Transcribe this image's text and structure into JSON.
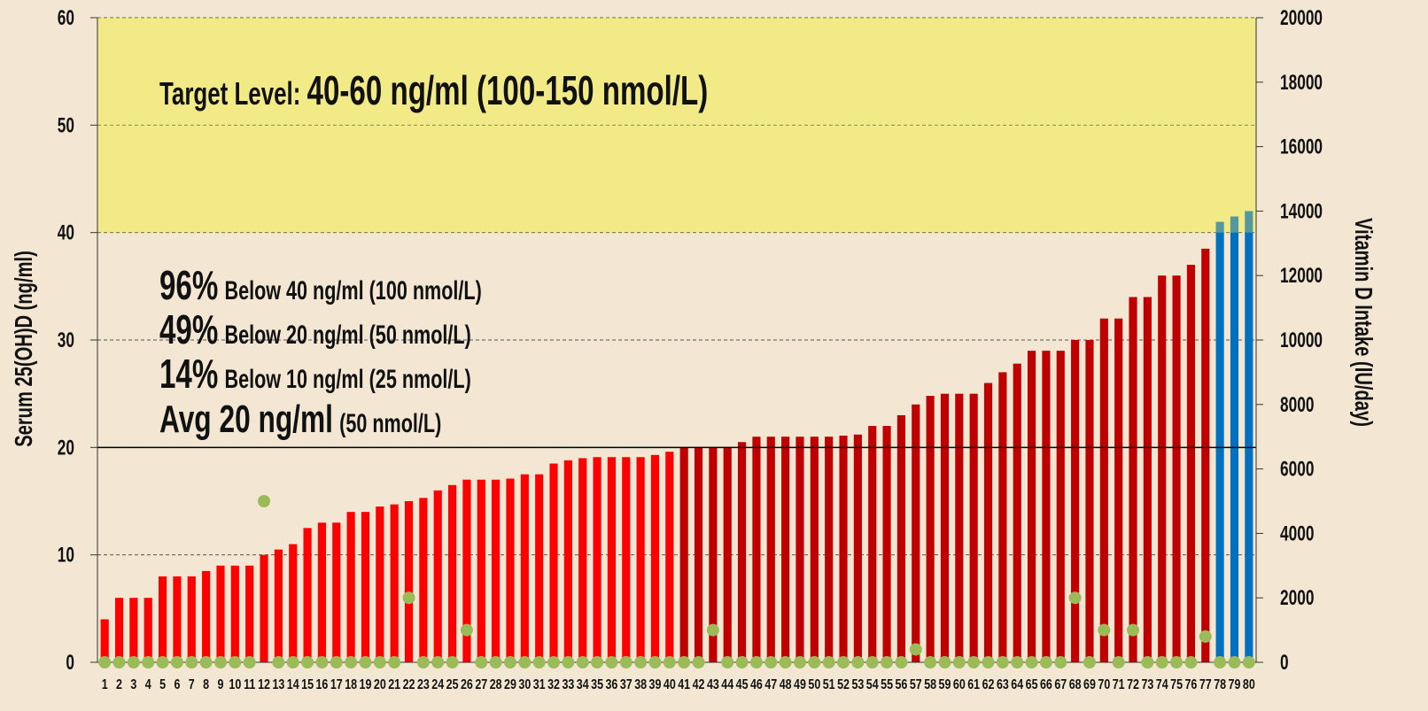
{
  "chart_data": {
    "type": "bar",
    "y_label": "Serum 25(OH)D (ng/ml)",
    "y2_label": "Vitamin D Intake (IU/day)",
    "categories": [
      "1",
      "2",
      "3",
      "4",
      "5",
      "6",
      "7",
      "8",
      "9",
      "10",
      "11",
      "12",
      "13",
      "14",
      "15",
      "16",
      "17",
      "18",
      "19",
      "20",
      "21",
      "22",
      "23",
      "24",
      "25",
      "26",
      "27",
      "28",
      "29",
      "30",
      "31",
      "32",
      "33",
      "34",
      "35",
      "36",
      "37",
      "38",
      "39",
      "40",
      "41",
      "42",
      "43",
      "44",
      "45",
      "46",
      "47",
      "48",
      "49",
      "50",
      "51",
      "52",
      "53",
      "54",
      "55",
      "56",
      "57",
      "58",
      "59",
      "60",
      "61",
      "62",
      "63",
      "64",
      "65",
      "66",
      "67",
      "68",
      "69",
      "70",
      "71",
      "72",
      "73",
      "74",
      "75",
      "76",
      "77",
      "78",
      "79",
      "80"
    ],
    "values": [
      4,
      6,
      6,
      6,
      8,
      8,
      8,
      8.5,
      9,
      9,
      9,
      10,
      10.5,
      11,
      12.5,
      13,
      13,
      14,
      14,
      14.5,
      14.7,
      15,
      15.3,
      16,
      16.5,
      17,
      17,
      17,
      17.1,
      17.5,
      17.5,
      18.5,
      18.8,
      19,
      19.1,
      19.1,
      19.1,
      19.1,
      19.3,
      19.6,
      20,
      20,
      20,
      20,
      20.5,
      21,
      21,
      21,
      21,
      21,
      21,
      21.1,
      21.2,
      22,
      22,
      23,
      24,
      24.8,
      25,
      25,
      25,
      26,
      27,
      27.8,
      29,
      29,
      29,
      30,
      30,
      32,
      32,
      34,
      34,
      36,
      36,
      37,
      38.5,
      41,
      41.5,
      42
    ],
    "colors": [
      "#ff0000",
      "#ff0000",
      "#ff0000",
      "#ff0000",
      "#ff0000",
      "#ff0000",
      "#ff0000",
      "#ff0000",
      "#ff0000",
      "#ff0000",
      "#ff0000",
      "#ff0000",
      "#ff0000",
      "#ff0000",
      "#ff0000",
      "#ff0000",
      "#ff0000",
      "#ff0000",
      "#ff0000",
      "#ff0000",
      "#ff0000",
      "#ff0000",
      "#ff0000",
      "#ff0000",
      "#ff0000",
      "#ff0000",
      "#ff0000",
      "#ff0000",
      "#ff0000",
      "#ff0000",
      "#ff0000",
      "#ff0000",
      "#ff0000",
      "#ff0000",
      "#ff0000",
      "#ff0000",
      "#ff0000",
      "#ff0000",
      "#ff0000",
      "#ff0000",
      "#c00000",
      "#c00000",
      "#c00000",
      "#c00000",
      "#c00000",
      "#c00000",
      "#c00000",
      "#c00000",
      "#c00000",
      "#c00000",
      "#c00000",
      "#c00000",
      "#c00000",
      "#c00000",
      "#c00000",
      "#c00000",
      "#c00000",
      "#c00000",
      "#c00000",
      "#c00000",
      "#c00000",
      "#c00000",
      "#c00000",
      "#c00000",
      "#c00000",
      "#c00000",
      "#c00000",
      "#c00000",
      "#c00000",
      "#c00000",
      "#c00000",
      "#c00000",
      "#c00000",
      "#c00000",
      "#c00000",
      "#c00000",
      "#c00000",
      "#0070c0",
      "#0070c0",
      "#0070c0"
    ],
    "intake": {
      "axis": "y2",
      "color": "#9bbb59",
      "values": [
        0,
        0,
        0,
        0,
        0,
        0,
        0,
        0,
        0,
        0,
        0,
        5000,
        0,
        0,
        0,
        0,
        0,
        0,
        0,
        0,
        0,
        2000,
        0,
        0,
        0,
        1000,
        0,
        0,
        0,
        0,
        0,
        0,
        0,
        0,
        0,
        0,
        0,
        0,
        0,
        0,
        0,
        0,
        1000,
        0,
        0,
        0,
        0,
        0,
        0,
        0,
        0,
        0,
        0,
        0,
        0,
        0,
        400,
        0,
        0,
        0,
        0,
        0,
        0,
        0,
        0,
        0,
        0,
        2000,
        0,
        1000,
        0,
        1000,
        0,
        0,
        0,
        0,
        800,
        0,
        0,
        0
      ]
    },
    "target_range": [
      40,
      60
    ],
    "target_color": "#f3ec9a",
    "average_line": 20,
    "ylim": [
      0,
      60
    ],
    "yticks": [
      0,
      10,
      20,
      30,
      40,
      50,
      60
    ],
    "y2lim": [
      0,
      20000
    ],
    "y2ticks": [
      0,
      2000,
      4000,
      6000,
      8000,
      10000,
      12000,
      14000,
      16000,
      18000,
      20000
    ],
    "grid": true,
    "annotations": [
      [
        "Target Level:",
        "40-60 ng/ml (100-150 nmol/L)"
      ],
      [
        "96%",
        "Below 40 ng/ml (100 nmol/L)"
      ],
      [
        "49%",
        "Below 20 ng/ml (50 nmol/L)"
      ],
      [
        "14%",
        "Below 10 ng/ml (25 nmol/L)"
      ],
      [
        "Avg 20 ng/ml",
        "(50 nmol/L)"
      ]
    ]
  }
}
